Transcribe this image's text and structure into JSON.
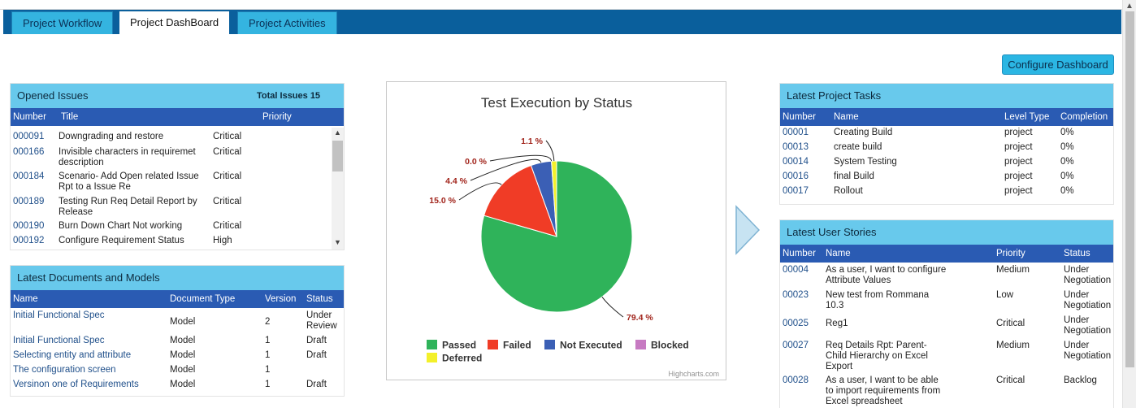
{
  "tabs": [
    {
      "label": "Project Workflow",
      "active": false
    },
    {
      "label": "Project DashBoard",
      "active": true
    },
    {
      "label": "Project Activities",
      "active": false
    }
  ],
  "configure_button": "Configure Dashboard",
  "opened_issues": {
    "title": "Opened Issues",
    "total": "Total Issues 15",
    "columns": [
      "Number",
      "Title",
      "Priority"
    ],
    "rows": [
      {
        "number": "000091",
        "title": "Downgrading and restore",
        "priority": "Critical"
      },
      {
        "number": "000166",
        "title": "Invisible characters in requiremet description",
        "priority": "Critical"
      },
      {
        "number": "000184",
        "title": "Scenario- Add Open related Issue Rpt to a Issue Re",
        "priority": "Critical"
      },
      {
        "number": "000189",
        "title": "Testing Run Req Detail Report by Release",
        "priority": "Critical"
      },
      {
        "number": "000190",
        "title": "Burn Down Chart Not working",
        "priority": "Critical"
      },
      {
        "number": "000192",
        "title": "Configure Requirement Status",
        "priority": "High"
      }
    ]
  },
  "documents": {
    "title": "Latest Documents and Models",
    "columns": [
      "Name",
      "Document Type",
      "Version",
      "Status"
    ],
    "rows": [
      {
        "name": "Initial Functional Spec",
        "type": "Model",
        "version": "2",
        "status": "Under Review"
      },
      {
        "name": "Initial Functional Spec",
        "type": "Model",
        "version": "1",
        "status": "Draft"
      },
      {
        "name": "Selecting entity and attribute",
        "type": "Model",
        "version": "1",
        "status": "Draft"
      },
      {
        "name": "The configuration screen",
        "type": "Model",
        "version": "1",
        "status": ""
      },
      {
        "name": "Versinon one of Requirements",
        "type": "Model",
        "version": "1",
        "status": "Draft"
      }
    ]
  },
  "chart_data": {
    "type": "pie",
    "title": "Test Execution by Status",
    "credit": "Highcharts.com",
    "slices": [
      {
        "name": "Passed",
        "value": 79.4,
        "label": "79.4 %",
        "color": "#2fb35a"
      },
      {
        "name": "Failed",
        "value": 15.0,
        "label": "15.0 %",
        "color": "#f03c26"
      },
      {
        "name": "Not Executed",
        "value": 4.4,
        "label": "4.4 %",
        "color": "#3b5fb5"
      },
      {
        "name": "Blocked",
        "value": 0.0,
        "label": "0.0 %",
        "color": "#c77ac2"
      },
      {
        "name": "Deferred",
        "value": 1.1,
        "label": "1.1 %",
        "color": "#f3f02a"
      }
    ],
    "label_color": "#a1241b",
    "legend": "bottom"
  },
  "tasks": {
    "title": "Latest Project Tasks",
    "columns": [
      "Number",
      "Name",
      "Level Type",
      "Completion"
    ],
    "rows": [
      {
        "number": "00001",
        "name": "Creating Build",
        "level": "project",
        "completion": "0%"
      },
      {
        "number": "00013",
        "name": "create build",
        "level": "project",
        "completion": "0%"
      },
      {
        "number": "00014",
        "name": "System Testing",
        "level": "project",
        "completion": "0%"
      },
      {
        "number": "00016",
        "name": "final Build",
        "level": "project",
        "completion": "0%"
      },
      {
        "number": "00017",
        "name": "Rollout",
        "level": "project",
        "completion": "0%"
      }
    ]
  },
  "stories": {
    "title": "Latest User Stories",
    "columns": [
      "Number",
      "Name",
      "Priority",
      "Status"
    ],
    "rows": [
      {
        "number": "00004",
        "name": "As a user, I want to configure Attribute Values",
        "priority": "Medium",
        "status": "Under Negotiation"
      },
      {
        "number": "00023",
        "name": "New test from Rommana 10.3",
        "priority": "Low",
        "status": "Under Negotiation"
      },
      {
        "number": "00025",
        "name": "Reg1",
        "priority": "Critical",
        "status": "Under Negotiation"
      },
      {
        "number": "00027",
        "name": "Req Details Rpt: Parent-Child Hierarchy on Excel Export",
        "priority": "Medium",
        "status": "Under Negotiation"
      },
      {
        "number": "00028",
        "name": "As a user, I want to be able to import requirements from Excel spreadsheet",
        "priority": "Critical",
        "status": "Backlog"
      }
    ]
  }
}
